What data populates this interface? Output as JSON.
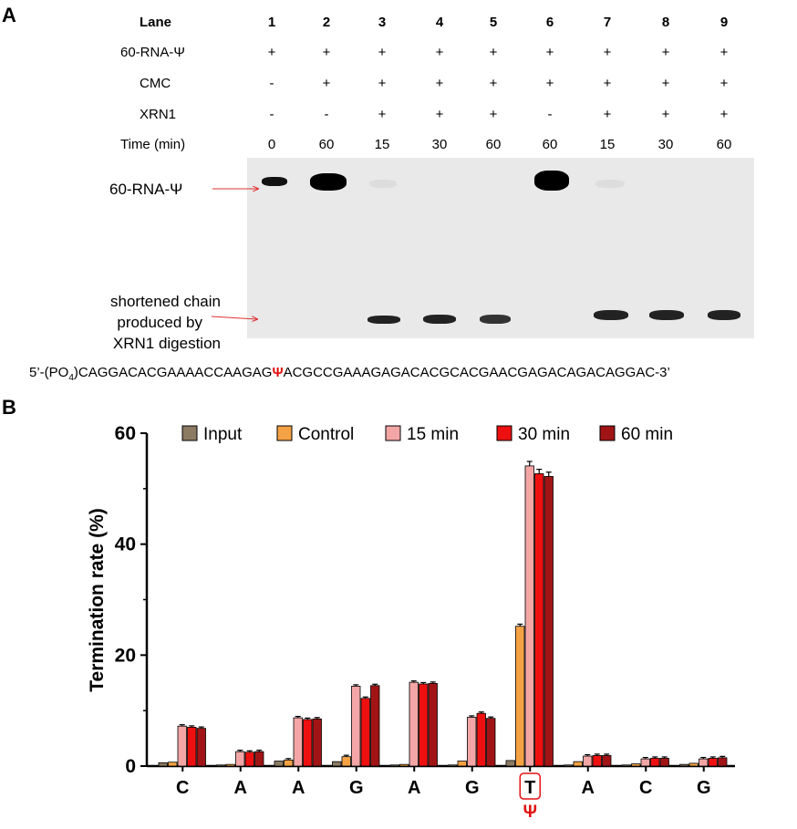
{
  "panel_a": {
    "letter": "A",
    "rows": [
      {
        "label": "Lane",
        "values": [
          "1",
          "2",
          "3",
          "4",
          "5",
          "6",
          "7",
          "8",
          "9"
        ]
      },
      {
        "label": "60-RNA-Ψ",
        "values": [
          "+",
          "+",
          "+",
          "+",
          "+",
          "+",
          "+",
          "+",
          "+"
        ]
      },
      {
        "label": "CMC",
        "values": [
          "-",
          "+",
          "+",
          "+",
          "+",
          "+",
          "+",
          "+",
          "+"
        ]
      },
      {
        "label": "XRN1",
        "values": [
          "-",
          "-",
          "+",
          "+",
          "+",
          "-",
          "+",
          "+",
          "+"
        ]
      },
      {
        "label": "Time (min)",
        "values": [
          "0",
          "60",
          "15",
          "30",
          "60",
          "60",
          "15",
          "30",
          "60"
        ]
      }
    ],
    "gel_labels": {
      "full": "60-RNA-Ψ",
      "short_line1": "shortened chain",
      "short_line2": "produced by",
      "short_line3": "XRN1 digestion"
    },
    "sequence": {
      "before": "5’-(PO",
      "subscript": "4",
      "middle": ")CAGGACACGAAAACCAAGAG",
      "psi": "Ψ",
      "after": "ACGCCGAAAGAGACACGCACGAACGAGACAGACAGGAC-3’"
    },
    "colors": {
      "arrow": "#e03030",
      "psi": "#e01010",
      "band": "#111111"
    }
  },
  "panel_b": {
    "letter": "B",
    "psi_marker": "Ψ",
    "highlight_index": 6
  },
  "chart_data": {
    "type": "bar",
    "ylabel": "Termination rate (%)",
    "xlabel": "",
    "ylim": [
      0,
      60
    ],
    "yticks": [
      "0",
      "20",
      "40",
      "60"
    ],
    "categories": [
      "C",
      "A",
      "A",
      "G",
      "A",
      "G",
      "T",
      "A",
      "C",
      "G"
    ],
    "legend_position": "top",
    "series": [
      {
        "name": "Input",
        "color": "#8c7b63",
        "values": [
          0.6,
          0.2,
          0.9,
          0.8,
          0.2,
          0.2,
          1.0,
          0.2,
          0.2,
          0.3
        ]
      },
      {
        "name": "Control",
        "color": "#f5a244",
        "values": [
          0.7,
          0.3,
          1.1,
          1.7,
          0.3,
          0.9,
          25.2,
          0.8,
          0.4,
          0.5
        ]
      },
      {
        "name": "15 min",
        "color": "#f4a6a6",
        "values": [
          7.2,
          2.6,
          8.7,
          14.4,
          15.1,
          8.8,
          54.1,
          1.8,
          1.3,
          1.3
        ]
      },
      {
        "name": "30 min",
        "color": "#ee1010",
        "values": [
          7.0,
          2.5,
          8.4,
          12.2,
          14.8,
          9.5,
          52.7,
          1.9,
          1.4,
          1.4
        ]
      },
      {
        "name": "60 min",
        "color": "#a01416",
        "values": [
          6.8,
          2.6,
          8.5,
          14.5,
          14.9,
          8.6,
          52.2,
          1.9,
          1.4,
          1.5
        ]
      }
    ]
  }
}
